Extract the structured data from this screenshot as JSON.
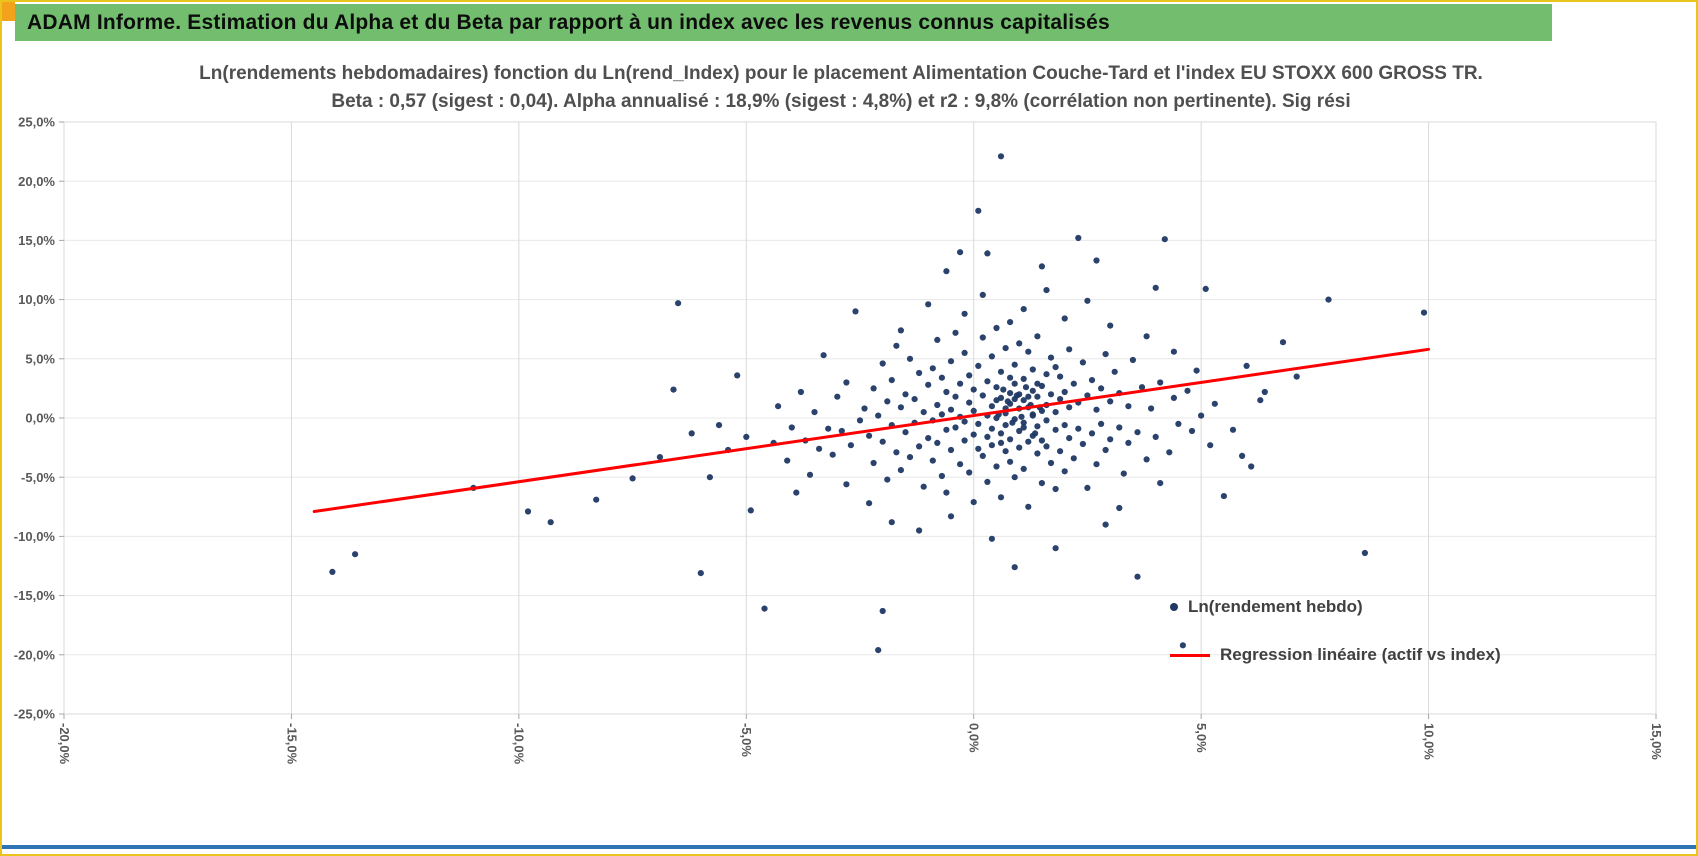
{
  "page": {
    "border_color": "#E8C41C",
    "corner_handle_color": "#F2A31B",
    "bottom_bar_color": "#2E74B5"
  },
  "header": {
    "title": "ADAM Informe. Estimation du Alpha et du Beta par rapport à un index avec les revenus connus capitalisés",
    "bg_color": "#72BE6E"
  },
  "chart_data": {
    "type": "scatter",
    "title": "Ln(rendements hebdomadaires) fonction du Ln(rend_Index) pour le placement Alimentation Couche-Tard  et l'index EU STOXX 600 GROSS TR.",
    "subtitle": "Beta : 0,57 (sigest : 0,04). Alpha annualisé : 18,9% (sigest : 4,8%) et r2 : 9,8% (corrélation non pertinente). Sig rési",
    "stats": {
      "beta": "0,57",
      "beta_sigest": "0,04",
      "alpha_annualise": "18,9%",
      "alpha_sigest": "4,8%",
      "r2": "9,8%",
      "r2_note": "corrélation non pertinente"
    },
    "xlim": [
      -20,
      15
    ],
    "ylim": [
      -25,
      25
    ],
    "x_ticks": [
      -20,
      -15,
      -10,
      -5,
      0,
      5,
      10,
      15
    ],
    "x_tick_labels": [
      "-20,0%",
      "-15,0%",
      "-10,0%",
      "-5,0%",
      "0,0%",
      "5,0%",
      "10,0%",
      "15,0%"
    ],
    "y_ticks": [
      25,
      20,
      15,
      10,
      5,
      0,
      -5,
      -10,
      -15,
      -20,
      -25
    ],
    "y_tick_labels": [
      "25,0%",
      "20,0%",
      "15,0%",
      "10,0%",
      "5,0%",
      "0,0%",
      "-5,0%",
      "-10,0%",
      "-15,0%",
      "-20,0%",
      "-25,0%"
    ],
    "grid": true,
    "point_color": "#1F3864",
    "line_color": "#FF0000",
    "regression": {
      "x1": -14.5,
      "y1": -7.9,
      "x2": 10.0,
      "y2": 5.8
    },
    "legend": [
      {
        "label": "Ln(rendement hebdo)",
        "marker": "point"
      },
      {
        "label": "Regression linéaire (actif vs index)",
        "marker": "line"
      }
    ],
    "points": [
      [
        -14.1,
        -13.0
      ],
      [
        -13.6,
        -11.5
      ],
      [
        -11.0,
        -5.9
      ],
      [
        -9.8,
        -7.9
      ],
      [
        -9.3,
        -8.8
      ],
      [
        -8.3,
        -6.9
      ],
      [
        -7.5,
        -5.1
      ],
      [
        -6.9,
        -3.3
      ],
      [
        -6.6,
        2.4
      ],
      [
        -6.5,
        9.7
      ],
      [
        -6.2,
        -1.3
      ],
      [
        -6.0,
        -13.1
      ],
      [
        -5.8,
        -5.0
      ],
      [
        -5.6,
        -0.6
      ],
      [
        -5.4,
        -2.7
      ],
      [
        -5.2,
        3.6
      ],
      [
        -5.0,
        -1.6
      ],
      [
        -4.9,
        -7.8
      ],
      [
        -4.6,
        -16.1
      ],
      [
        -4.4,
        -2.1
      ],
      [
        -4.3,
        1.0
      ],
      [
        -4.1,
        -3.6
      ],
      [
        -4.0,
        -0.8
      ],
      [
        -3.9,
        -6.3
      ],
      [
        -3.8,
        2.2
      ],
      [
        -3.7,
        -1.9
      ],
      [
        -3.6,
        -4.8
      ],
      [
        -3.5,
        0.5
      ],
      [
        -3.4,
        -2.6
      ],
      [
        -3.3,
        5.3
      ],
      [
        -3.2,
        -0.9
      ],
      [
        -3.1,
        -3.1
      ],
      [
        -3.0,
        1.8
      ],
      [
        -2.9,
        -1.1
      ],
      [
        -2.8,
        -5.6
      ],
      [
        -2.8,
        3.0
      ],
      [
        -2.7,
        -2.3
      ],
      [
        -2.6,
        9.0
      ],
      [
        -2.5,
        -0.2
      ],
      [
        -2.1,
        -19.6
      ],
      [
        0.6,
        22.1
      ],
      [
        0.1,
        17.5
      ],
      [
        -0.3,
        14.0
      ],
      [
        0.3,
        13.9
      ],
      [
        2.3,
        15.2
      ],
      [
        4.2,
        15.1
      ],
      [
        -0.6,
        12.4
      ],
      [
        1.5,
        12.8
      ],
      [
        2.7,
        13.3
      ],
      [
        4.0,
        11.0
      ],
      [
        5.1,
        10.9
      ],
      [
        7.8,
        10.0
      ],
      [
        9.9,
        8.9
      ],
      [
        8.6,
        -11.4
      ],
      [
        4.6,
        -19.2
      ],
      [
        -2.0,
        -16.3
      ],
      [
        3.6,
        -13.4
      ],
      [
        5.5,
        -6.6
      ],
      [
        6.1,
        -4.1
      ],
      [
        0.9,
        -12.6
      ],
      [
        -1.2,
        -9.5
      ],
      [
        0.4,
        -10.2
      ],
      [
        1.8,
        -11.0
      ],
      [
        2.9,
        -9.0
      ],
      [
        -0.5,
        -8.3
      ],
      [
        3.2,
        -7.6
      ],
      [
        -2.3,
        -7.2
      ],
      [
        4.1,
        -5.5
      ],
      [
        -1.8,
        -8.8
      ],
      [
        -1.0,
        9.6
      ],
      [
        0.2,
        10.4
      ],
      [
        1.1,
        9.2
      ],
      [
        2.0,
        8.4
      ],
      [
        3.0,
        7.8
      ],
      [
        -0.2,
        8.8
      ],
      [
        1.6,
        10.8
      ],
      [
        2.5,
        9.9
      ],
      [
        0.8,
        8.1
      ],
      [
        3.8,
        6.9
      ],
      [
        4.4,
        5.6
      ],
      [
        -1.6,
        7.4
      ],
      [
        6.8,
        6.4
      ],
      [
        6.0,
        4.4
      ],
      [
        6.4,
        2.2
      ],
      [
        7.1,
        3.5
      ],
      [
        5.9,
        -3.2
      ],
      [
        6.3,
        1.5
      ],
      [
        5.7,
        -1.0
      ],
      [
        -2.4,
        0.8
      ],
      [
        -2.3,
        -1.5
      ],
      [
        -2.2,
        2.5
      ],
      [
        -2.2,
        -3.8
      ],
      [
        -2.1,
        0.2
      ],
      [
        -2.0,
        4.6
      ],
      [
        -2.0,
        -2.0
      ],
      [
        -1.9,
        1.4
      ],
      [
        -1.9,
        -5.2
      ],
      [
        -1.8,
        3.2
      ],
      [
        -1.8,
        -0.6
      ],
      [
        -1.7,
        6.1
      ],
      [
        -1.7,
        -2.9
      ],
      [
        -1.6,
        0.9
      ],
      [
        -1.6,
        -4.4
      ],
      [
        -1.5,
        2.0
      ],
      [
        -1.5,
        -1.2
      ],
      [
        -1.4,
        5.0
      ],
      [
        -1.4,
        -3.3
      ],
      [
        -1.3,
        1.6
      ],
      [
        -1.3,
        -0.4
      ],
      [
        -1.2,
        3.8
      ],
      [
        -1.2,
        -2.4
      ],
      [
        -1.1,
        0.5
      ],
      [
        -1.1,
        -5.8
      ],
      [
        -1.0,
        2.8
      ],
      [
        -1.0,
        -1.7
      ],
      [
        -0.9,
        4.2
      ],
      [
        -0.9,
        -0.2
      ],
      [
        -0.9,
        -3.6
      ],
      [
        -0.8,
        1.1
      ],
      [
        -0.8,
        6.6
      ],
      [
        -0.8,
        -2.1
      ],
      [
        -0.7,
        0.3
      ],
      [
        -0.7,
        -4.9
      ],
      [
        -0.7,
        3.4
      ],
      [
        -0.6,
        -1.0
      ],
      [
        -0.6,
        2.2
      ],
      [
        -0.6,
        -6.3
      ],
      [
        -0.5,
        0.7
      ],
      [
        -0.5,
        4.8
      ],
      [
        -0.5,
        -2.7
      ],
      [
        -0.4,
        1.8
      ],
      [
        -0.4,
        -0.8
      ],
      [
        -0.4,
        7.2
      ],
      [
        -0.3,
        -3.9
      ],
      [
        -0.3,
        2.9
      ],
      [
        -0.3,
        0.1
      ],
      [
        -0.2,
        -1.9
      ],
      [
        -0.2,
        5.5
      ],
      [
        -0.2,
        -0.3
      ],
      [
        -0.1,
        1.3
      ],
      [
        -0.1,
        -4.6
      ],
      [
        -0.1,
        3.6
      ],
      [
        0.0,
        -1.4
      ],
      [
        0.0,
        0.6
      ],
      [
        0.0,
        -7.1
      ],
      [
        0.0,
        2.4
      ],
      [
        0.1,
        -2.6
      ],
      [
        0.1,
        4.4
      ],
      [
        0.1,
        -0.5
      ],
      [
        0.2,
        1.9
      ],
      [
        0.2,
        -3.2
      ],
      [
        0.2,
        6.8
      ],
      [
        0.3,
        0.2
      ],
      [
        0.3,
        -1.6
      ],
      [
        0.3,
        3.1
      ],
      [
        0.3,
        -5.4
      ],
      [
        0.4,
        1.0
      ],
      [
        0.4,
        -0.9
      ],
      [
        0.4,
        5.2
      ],
      [
        0.4,
        -2.3
      ],
      [
        0.5,
        2.6
      ],
      [
        0.5,
        0.0
      ],
      [
        0.5,
        -4.1
      ],
      [
        0.5,
        7.6
      ],
      [
        0.6,
        -1.3
      ],
      [
        0.6,
        1.7
      ],
      [
        0.6,
        -6.7
      ],
      [
        0.6,
        3.9
      ],
      [
        0.7,
        0.4
      ],
      [
        0.7,
        -2.8
      ],
      [
        0.7,
        5.9
      ],
      [
        0.7,
        -0.6
      ],
      [
        0.8,
        2.1
      ],
      [
        0.8,
        -3.7
      ],
      [
        0.8,
        1.2
      ],
      [
        0.8,
        -1.8
      ],
      [
        0.9,
        4.5
      ],
      [
        0.9,
        -0.1
      ],
      [
        0.9,
        -5.0
      ],
      [
        0.9,
        2.9
      ],
      [
        1.0,
        0.8
      ],
      [
        1.0,
        -2.5
      ],
      [
        1.0,
        6.3
      ],
      [
        1.0,
        -1.1
      ],
      [
        1.1,
        3.3
      ],
      [
        1.1,
        -4.3
      ],
      [
        1.1,
        1.5
      ],
      [
        1.1,
        -0.4
      ],
      [
        1.2,
        5.6
      ],
      [
        1.2,
        -2.0
      ],
      [
        1.2,
        0.9
      ],
      [
        1.2,
        -7.5
      ],
      [
        1.3,
        2.3
      ],
      [
        1.3,
        -1.5
      ],
      [
        1.3,
        4.1
      ],
      [
        1.3,
        0.3
      ],
      [
        1.4,
        -3.0
      ],
      [
        1.4,
        1.8
      ],
      [
        1.4,
        -0.7
      ],
      [
        1.4,
        6.9
      ],
      [
        1.5,
        -1.9
      ],
      [
        1.5,
        2.7
      ],
      [
        1.5,
        -5.5
      ],
      [
        1.5,
        0.6
      ],
      [
        1.6,
        3.7
      ],
      [
        1.6,
        -2.4
      ],
      [
        1.6,
        1.1
      ],
      [
        1.6,
        -0.2
      ],
      [
        1.7,
        5.1
      ],
      [
        1.7,
        -3.8
      ],
      [
        1.7,
        2.0
      ],
      [
        1.8,
        -1.0
      ],
      [
        1.8,
        4.3
      ],
      [
        1.8,
        0.5
      ],
      [
        1.8,
        -6.0
      ],
      [
        1.9,
        1.6
      ],
      [
        1.9,
        -2.8
      ],
      [
        1.9,
        3.5
      ],
      [
        2.0,
        -0.6
      ],
      [
        2.0,
        2.2
      ],
      [
        2.0,
        -4.5
      ],
      [
        2.1,
        0.9
      ],
      [
        2.1,
        5.8
      ],
      [
        2.1,
        -1.7
      ],
      [
        2.2,
        2.9
      ],
      [
        2.2,
        -3.4
      ],
      [
        2.3,
        1.3
      ],
      [
        2.3,
        -0.9
      ],
      [
        2.4,
        4.7
      ],
      [
        2.4,
        -2.2
      ],
      [
        2.5,
        1.9
      ],
      [
        2.5,
        -5.9
      ],
      [
        2.6,
        3.2
      ],
      [
        2.6,
        -1.3
      ],
      [
        2.7,
        0.7
      ],
      [
        2.7,
        -3.9
      ],
      [
        2.8,
        2.5
      ],
      [
        2.8,
        -0.5
      ],
      [
        2.9,
        5.4
      ],
      [
        2.9,
        -2.7
      ],
      [
        3.0,
        1.4
      ],
      [
        3.0,
        -1.8
      ],
      [
        3.1,
        3.9
      ],
      [
        3.2,
        -0.8
      ],
      [
        3.2,
        2.1
      ],
      [
        3.3,
        -4.7
      ],
      [
        3.4,
        1.0
      ],
      [
        3.4,
        -2.1
      ],
      [
        3.5,
        4.9
      ],
      [
        3.6,
        -1.2
      ],
      [
        3.7,
        2.6
      ],
      [
        3.8,
        -3.5
      ],
      [
        3.9,
        0.8
      ],
      [
        4.0,
        -1.6
      ],
      [
        4.1,
        3.0
      ],
      [
        4.3,
        -2.9
      ],
      [
        4.4,
        1.7
      ],
      [
        4.5,
        -0.5
      ],
      [
        4.7,
        2.3
      ],
      [
        4.8,
        -1.1
      ],
      [
        4.9,
        4.0
      ],
      [
        5.0,
        0.2
      ],
      [
        5.2,
        -2.3
      ],
      [
        5.3,
        1.2
      ],
      [
        0.55,
        0.3
      ],
      [
        0.65,
        2.4
      ],
      [
        0.75,
        1.4
      ],
      [
        0.85,
        -0.4
      ],
      [
        0.95,
        1.9
      ],
      [
        1.05,
        0.1
      ],
      [
        1.15,
        2.6
      ],
      [
        1.25,
        1.1
      ],
      [
        1.35,
        -1.3
      ],
      [
        1.45,
        0.9
      ],
      [
        0.5,
        1.5
      ],
      [
        0.6,
        -2.1
      ],
      [
        0.7,
        0.8
      ],
      [
        0.8,
        3.4
      ],
      [
        0.9,
        1.6
      ],
      [
        1.0,
        2.0
      ],
      [
        1.1,
        -0.8
      ],
      [
        1.2,
        1.8
      ],
      [
        1.3,
        0.2
      ],
      [
        1.4,
        2.9
      ]
    ]
  }
}
